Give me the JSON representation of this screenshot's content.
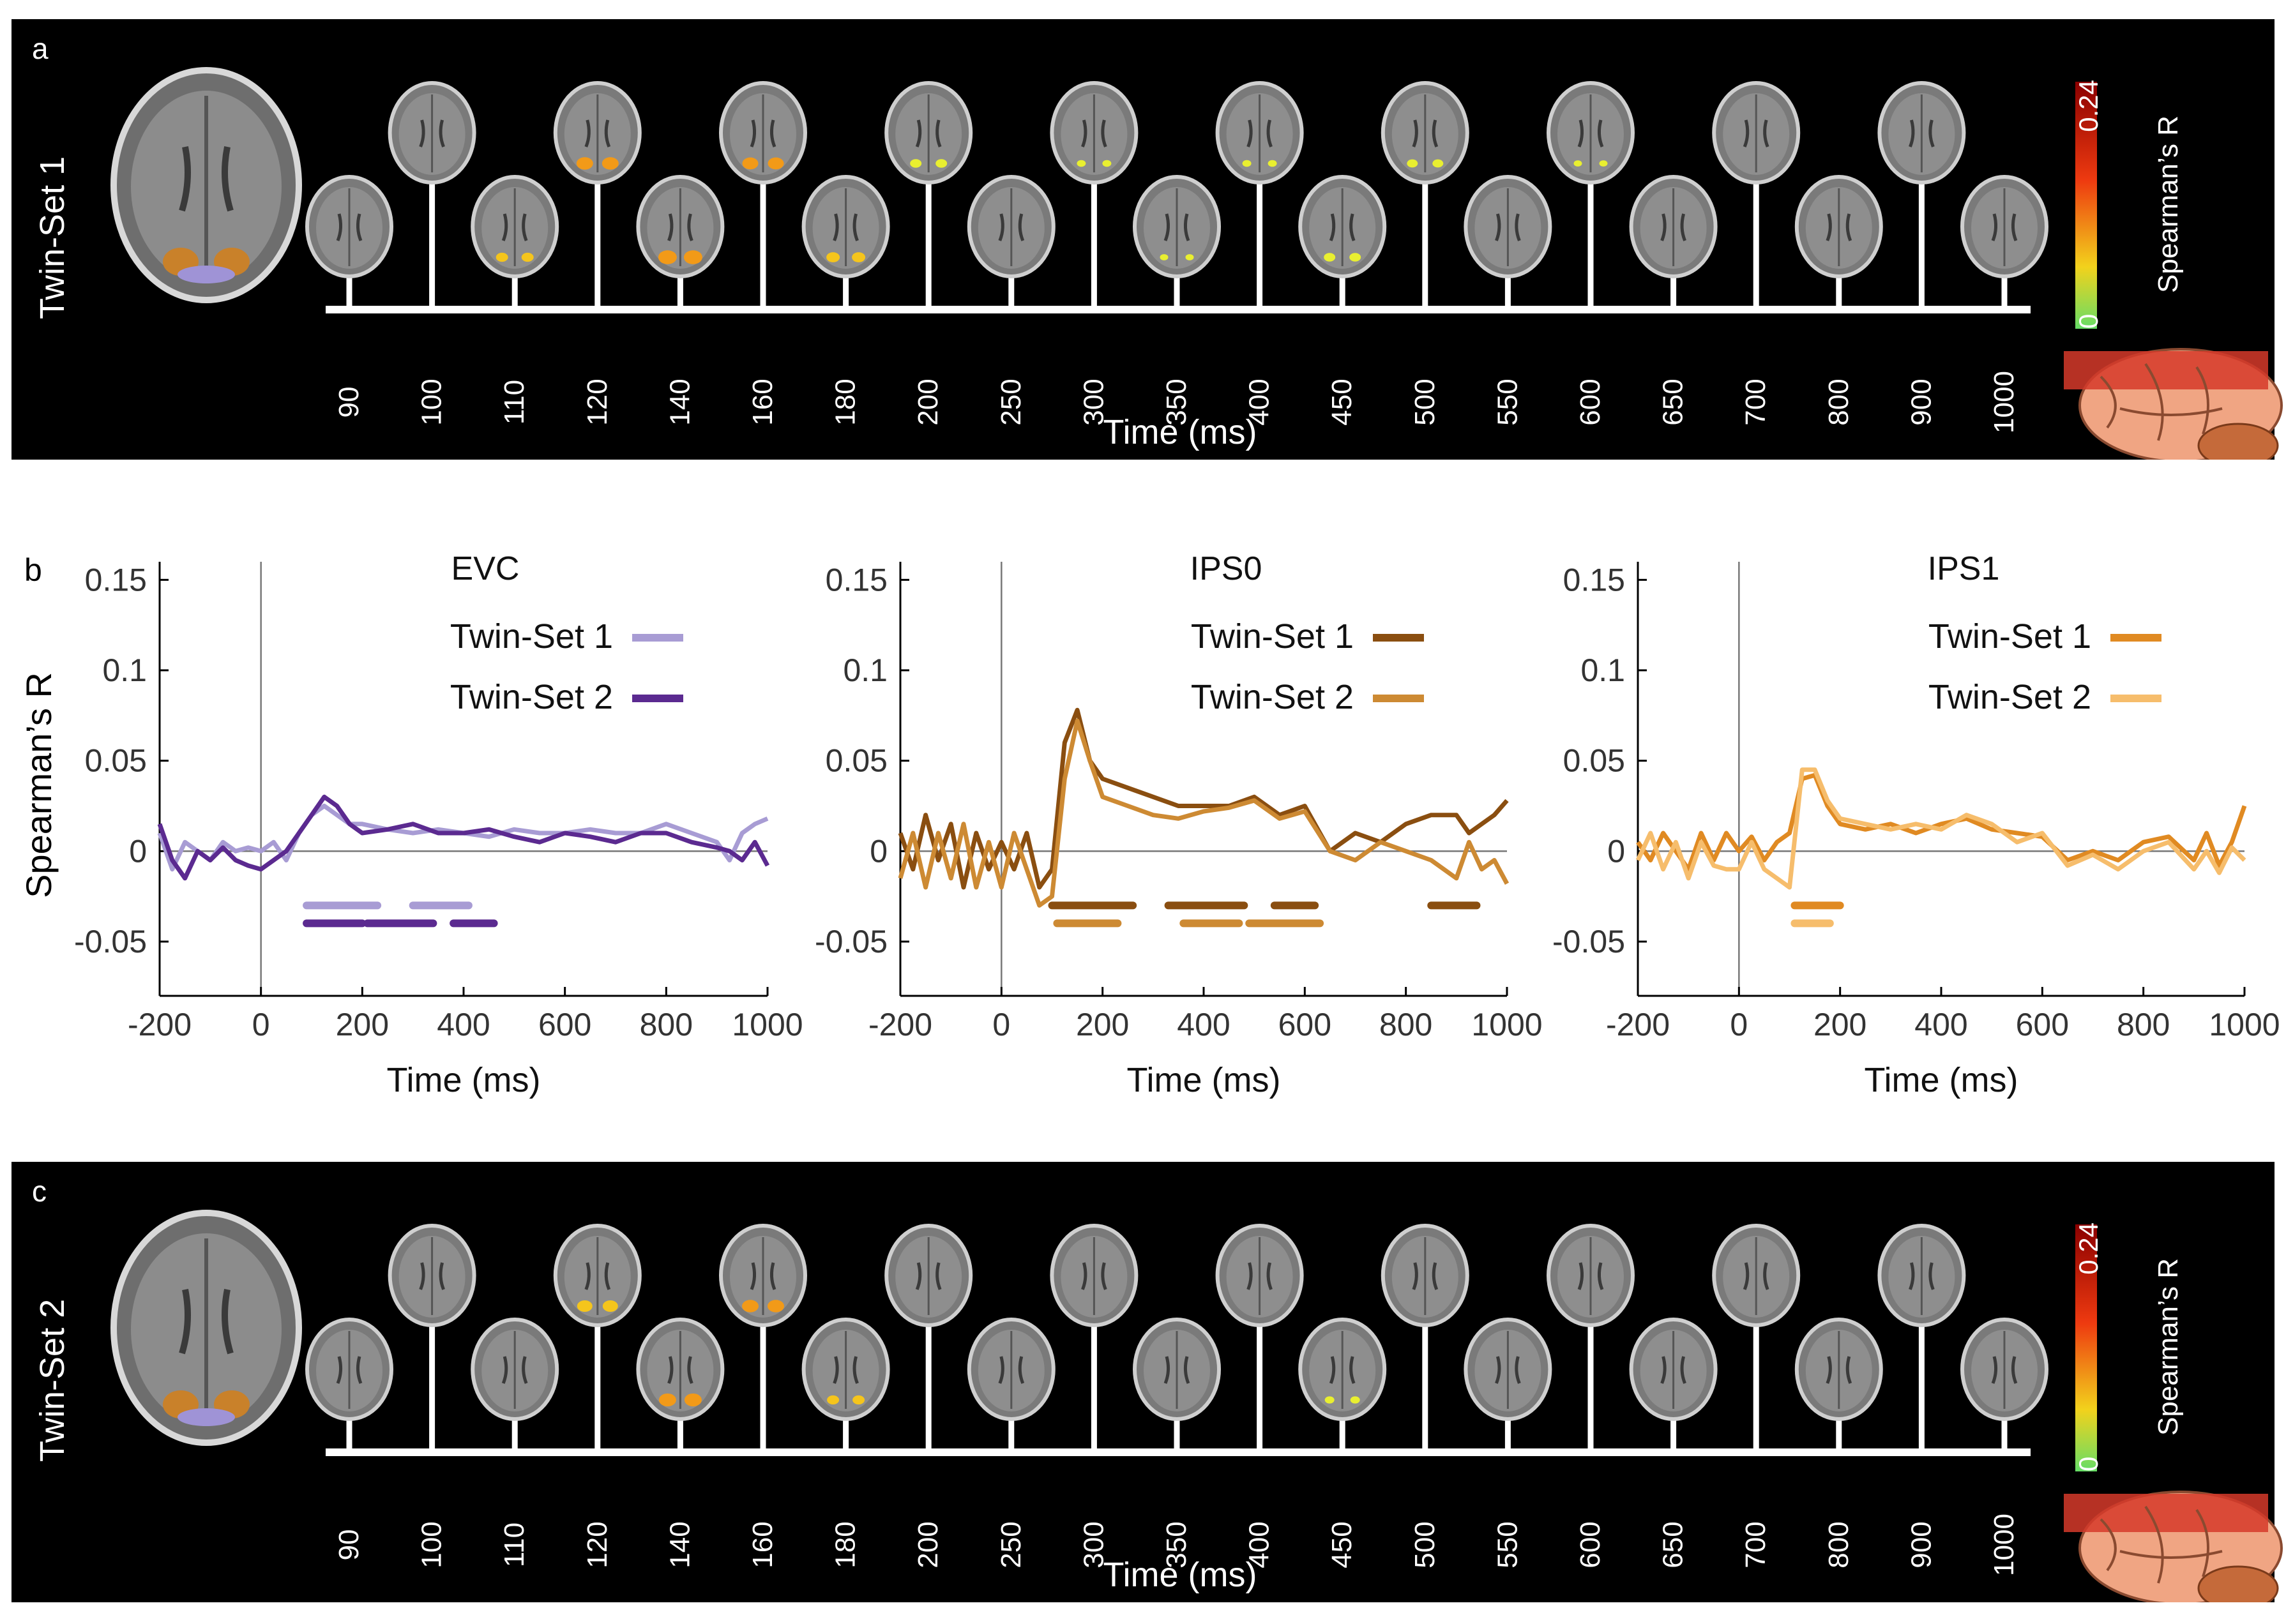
{
  "colors": {
    "evc_set1": "#a89cd4",
    "evc_set2": "#5b2a90",
    "ips0_set1": "#8a4e10",
    "ips0_set2": "#cd8a33",
    "ips1_set1": "#e08a22",
    "ips1_set2": "#f6bd6c",
    "panel_bg": "#000000",
    "colorbar_top": "#8b0000",
    "colorbar_bottom": "#66dd66"
  },
  "panel_a": {
    "letter": "a",
    "row_label": "Twin-Set 1",
    "xlabel": "Time (ms)",
    "colorbar_label": "Spearman’s R",
    "colorbar_max": "0.24",
    "colorbar_min": "0",
    "timepoints": [
      "90",
      "100",
      "110",
      "120",
      "140",
      "160",
      "180",
      "200",
      "250",
      "300",
      "350",
      "400",
      "450",
      "500",
      "550",
      "600",
      "650",
      "700",
      "800",
      "900",
      "1000"
    ],
    "activation": [
      0,
      0,
      0.35,
      0.7,
      0.85,
      0.65,
      0.45,
      0.3,
      0,
      0.1,
      0.05,
      0.1,
      0.3,
      0.25,
      0,
      0.05,
      0,
      0,
      0,
      0,
      0
    ]
  },
  "panel_c": {
    "letter": "c",
    "row_label": "Twin-Set 2",
    "xlabel": "Time (ms)",
    "colorbar_label": "Spearman’s R",
    "colorbar_max": "0.24",
    "colorbar_min": "0",
    "timepoints": [
      "90",
      "100",
      "110",
      "120",
      "140",
      "160",
      "180",
      "200",
      "250",
      "300",
      "350",
      "400",
      "450",
      "500",
      "550",
      "600",
      "650",
      "700",
      "800",
      "900",
      "1000"
    ],
    "activation": [
      0,
      0,
      0,
      0.6,
      0.75,
      0.7,
      0.35,
      0,
      0,
      0,
      0,
      0,
      0.15,
      0,
      0,
      0,
      0,
      0,
      0,
      0,
      0
    ]
  },
  "panel_b": {
    "letter": "b",
    "ylabel": "Spearman’s R"
  },
  "chart_data": [
    {
      "type": "line",
      "title": "EVC",
      "xlabel": "Time (ms)",
      "ylabel": "Spearman’s R",
      "xlim": [
        -200,
        1000
      ],
      "ylim": [
        -0.08,
        0.16
      ],
      "xticks": [
        "-200",
        "0",
        "200",
        "400",
        "600",
        "800",
        "1000"
      ],
      "yticks": [
        "0.15",
        "0.1",
        "0.05",
        "0",
        "-0.05"
      ],
      "x": [
        -200,
        -175,
        -150,
        -125,
        -100,
        -75,
        -50,
        -25,
        0,
        25,
        50,
        75,
        100,
        125,
        150,
        175,
        200,
        250,
        300,
        350,
        400,
        450,
        500,
        550,
        600,
        650,
        700,
        750,
        800,
        850,
        900,
        925,
        950,
        975,
        1000
      ],
      "series": [
        {
          "name": "Twin-Set 1",
          "color": "#a89cd4",
          "values": [
            0.01,
            -0.01,
            0.005,
            0,
            -0.005,
            0.005,
            0,
            0.002,
            0,
            0.005,
            -0.005,
            0.01,
            0.02,
            0.025,
            0.02,
            0.015,
            0.015,
            0.012,
            0.01,
            0.012,
            0.01,
            0.008,
            0.012,
            0.01,
            0.01,
            0.012,
            0.01,
            0.01,
            0.015,
            0.01,
            0.005,
            -0.005,
            0.01,
            0.015,
            0.018
          ],
          "significance": [
            [
              90,
              230
            ],
            [
              300,
              410
            ]
          ]
        },
        {
          "name": "Twin-Set 2",
          "color": "#5b2a90",
          "values": [
            0.015,
            -0.005,
            -0.015,
            0,
            -0.005,
            0.002,
            -0.005,
            -0.008,
            -0.01,
            -0.005,
            0,
            0.01,
            0.02,
            0.03,
            0.025,
            0.015,
            0.01,
            0.012,
            0.015,
            0.01,
            0.01,
            0.012,
            0.008,
            0.005,
            0.01,
            0.008,
            0.005,
            0.01,
            0.01,
            0.005,
            0.002,
            0,
            -0.005,
            0.005,
            -0.008
          ],
          "significance": [
            [
              90,
              200
            ],
            [
              210,
              340
            ],
            [
              380,
              460
            ]
          ]
        }
      ]
    },
    {
      "type": "line",
      "title": "IPS0",
      "xlabel": "Time (ms)",
      "ylabel": "",
      "xlim": [
        -200,
        1000
      ],
      "ylim": [
        -0.08,
        0.16
      ],
      "xticks": [
        "-200",
        "0",
        "200",
        "400",
        "600",
        "800",
        "1000"
      ],
      "yticks": [
        "0.15",
        "0.1",
        "0.05",
        "0",
        "-0.05"
      ],
      "x": [
        -200,
        -175,
        -150,
        -125,
        -100,
        -75,
        -50,
        -25,
        0,
        25,
        50,
        75,
        100,
        125,
        150,
        175,
        200,
        250,
        300,
        350,
        400,
        450,
        500,
        550,
        600,
        650,
        700,
        750,
        800,
        850,
        900,
        925,
        950,
        975,
        1000
      ],
      "series": [
        {
          "name": "Twin-Set 1",
          "color": "#8a4e10",
          "values": [
            0.01,
            -0.01,
            0.02,
            -0.005,
            0.015,
            -0.02,
            0.01,
            -0.01,
            0.005,
            -0.01,
            0.01,
            -0.02,
            -0.01,
            0.06,
            0.078,
            0.05,
            0.04,
            0.035,
            0.03,
            0.025,
            0.025,
            0.025,
            0.03,
            0.02,
            0.025,
            0,
            0.01,
            0.005,
            0.015,
            0.02,
            0.02,
            0.01,
            0.015,
            0.02,
            0.028
          ],
          "significance": [
            [
              100,
              260
            ],
            [
              330,
              480
            ],
            [
              540,
              620
            ],
            [
              850,
              940
            ]
          ]
        },
        {
          "name": "Twin-Set 2",
          "color": "#cd8a33",
          "values": [
            -0.015,
            0.01,
            -0.02,
            0.01,
            -0.015,
            0.015,
            -0.02,
            0.005,
            -0.02,
            0.01,
            -0.01,
            -0.03,
            -0.025,
            0.04,
            0.072,
            0.05,
            0.03,
            0.025,
            0.02,
            0.018,
            0.022,
            0.024,
            0.028,
            0.018,
            0.022,
            0,
            -0.005,
            0.005,
            0,
            -0.005,
            -0.015,
            0.005,
            -0.01,
            -0.005,
            -0.018
          ],
          "significance": [
            [
              110,
              230
            ],
            [
              360,
              470
            ],
            [
              490,
              630
            ]
          ]
        }
      ]
    },
    {
      "type": "line",
      "title": "IPS1",
      "xlabel": "Time (ms)",
      "ylabel": "",
      "xlim": [
        -200,
        1000
      ],
      "ylim": [
        -0.08,
        0.16
      ],
      "xticks": [
        "-200",
        "0",
        "200",
        "400",
        "600",
        "800",
        "1000"
      ],
      "yticks": [
        "0.15",
        "0.1",
        "0.05",
        "0",
        "-0.05"
      ],
      "x": [
        -200,
        -175,
        -150,
        -125,
        -100,
        -75,
        -50,
        -25,
        0,
        25,
        50,
        75,
        100,
        125,
        150,
        175,
        200,
        250,
        300,
        350,
        400,
        450,
        500,
        550,
        600,
        650,
        700,
        750,
        800,
        850,
        900,
        925,
        950,
        975,
        1000
      ],
      "series": [
        {
          "name": "Twin-Set 1",
          "color": "#e08a22",
          "values": [
            0.005,
            -0.005,
            0.01,
            0,
            -0.01,
            0.01,
            -0.005,
            0.01,
            0,
            0.008,
            -0.005,
            0.005,
            0.01,
            0.04,
            0.042,
            0.025,
            0.015,
            0.012,
            0.015,
            0.01,
            0.015,
            0.018,
            0.012,
            0.01,
            0.008,
            -0.005,
            0,
            -0.005,
            0.005,
            0.008,
            -0.005,
            0.01,
            -0.008,
            0.005,
            0.025
          ],
          "significance": [
            [
              110,
              200
            ]
          ]
        },
        {
          "name": "Twin-Set 2",
          "color": "#f6bd6c",
          "values": [
            -0.005,
            0.01,
            -0.01,
            0.005,
            -0.015,
            0.005,
            -0.008,
            -0.01,
            -0.01,
            0.005,
            -0.01,
            -0.015,
            -0.02,
            0.045,
            0.045,
            0.028,
            0.018,
            0.015,
            0.012,
            0.015,
            0.012,
            0.02,
            0.015,
            0.005,
            0.01,
            -0.008,
            -0.002,
            -0.01,
            0,
            0.005,
            -0.01,
            0,
            -0.012,
            0.002,
            -0.005
          ],
          "significance": [
            [
              110,
              180
            ]
          ]
        }
      ]
    }
  ]
}
